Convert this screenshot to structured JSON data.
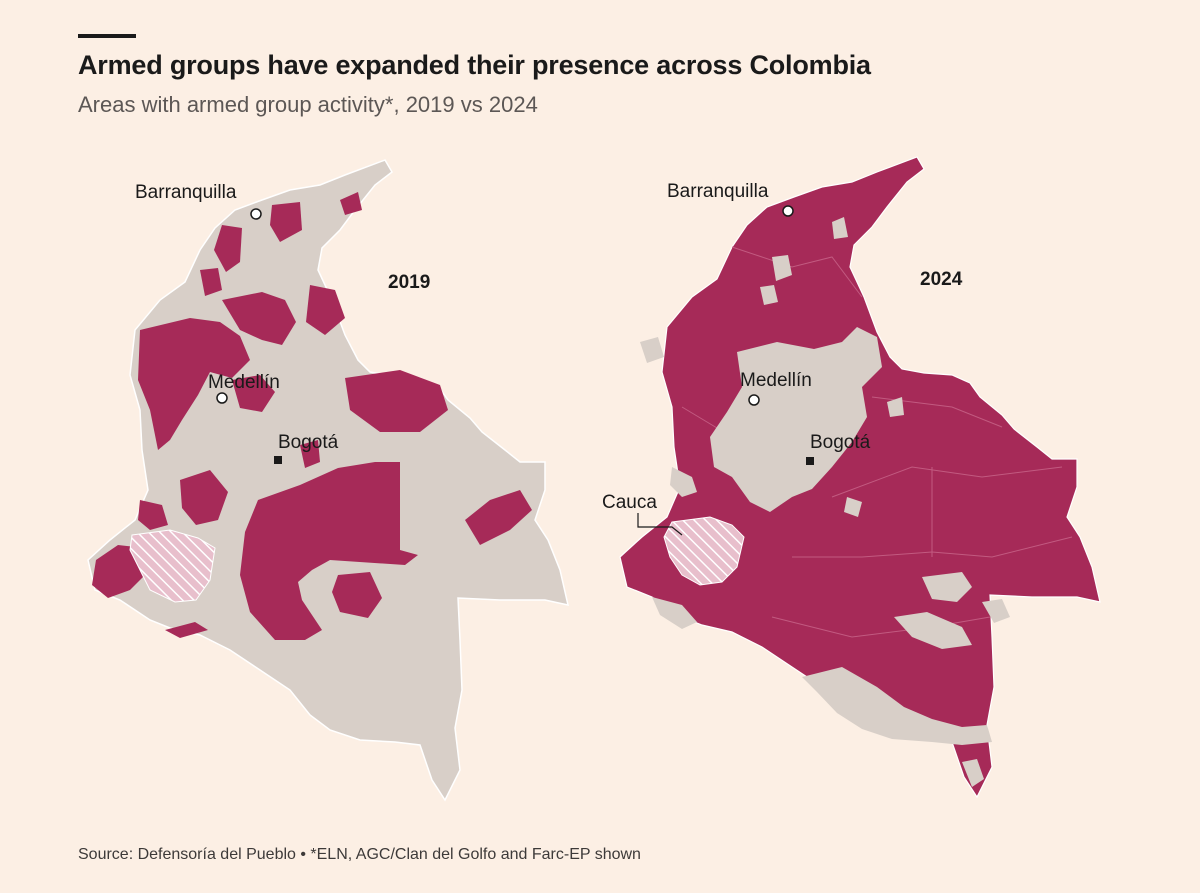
{
  "header": {
    "title": "Armed groups have expanded their presence across Colombia",
    "subtitle": "Areas with armed group activity*, 2019 vs 2024"
  },
  "maps": [
    {
      "year": "2019",
      "cities": {
        "barranquilla": "Barranquilla",
        "medellin": "Medellín",
        "bogota": "Bogotá"
      }
    },
    {
      "year": "2024",
      "cities": {
        "barranquilla": "Barranquilla",
        "medellin": "Medellín",
        "bogota": "Bogotá"
      },
      "callout": "Cauca"
    }
  ],
  "colors": {
    "background": "#fcefe4",
    "land": "#d8cfc8",
    "armed_activity": "#a62a58",
    "hatch": "#e8bfcc"
  },
  "source": "Source: Defensoría del Pueblo • *ELN, AGC/Clan del Golfo and Farc-EP shown"
}
